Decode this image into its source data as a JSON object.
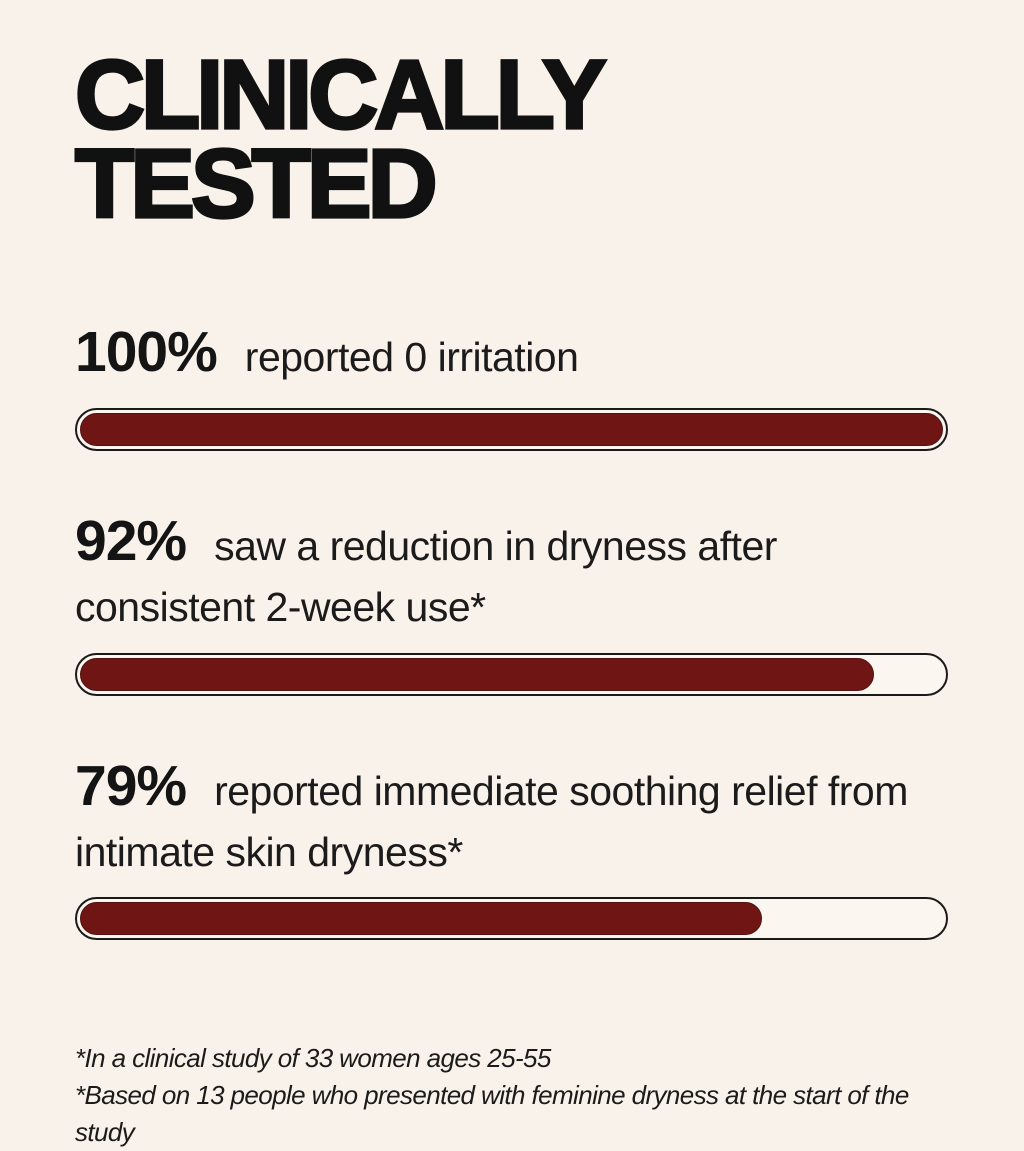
{
  "page": {
    "background_color": "#f8f2ea",
    "text_color": "#161616",
    "bar_fill_color": "#6f1615",
    "bar_track_color": "#fbf7f0",
    "bar_border_color": "#1a1a1a"
  },
  "title": {
    "line1": "CLINICALLY",
    "line2": "TESTED"
  },
  "stats": [
    {
      "percent": "100%",
      "value": 100,
      "description": "reported 0 irritation"
    },
    {
      "percent": "92%",
      "value": 92,
      "description": "saw a reduction in dryness after consistent 2-week use*"
    },
    {
      "percent": "79%",
      "value": 79,
      "description": "reported immediate soothing relief from intimate skin dryness*"
    }
  ],
  "footnotes": {
    "line1": "*In a clinical study of 33 women ages 25-55",
    "line2": "*Based on 13 people who presented with feminine dryness at the start of the study"
  },
  "chart_data": {
    "type": "bar",
    "title": "CLINICALLY TESTED",
    "orientation": "horizontal",
    "categories": [
      "reported 0 irritation",
      "saw a reduction in dryness after consistent 2-week use*",
      "reported immediate soothing relief from intimate skin dryness*"
    ],
    "values": [
      100,
      92,
      79
    ],
    "value_labels": [
      "100%",
      "92%",
      "79%"
    ],
    "xlabel": "",
    "ylabel": "",
    "xlim": [
      0,
      100
    ],
    "grid": false,
    "legend": false,
    "bar_color": "#6f1615",
    "annotations": [
      "*In a clinical study of 33 women ages 25-55",
      "*Based on 13 people who presented with feminine dryness at the start of the study"
    ]
  }
}
